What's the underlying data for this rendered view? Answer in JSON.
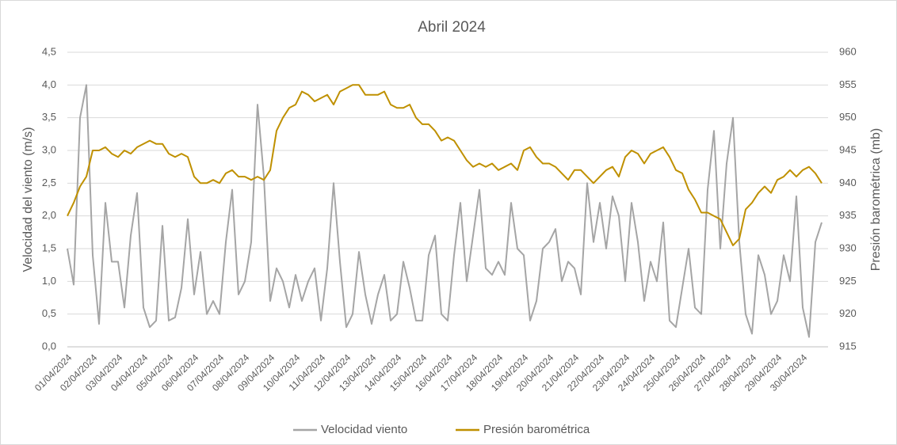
{
  "chart_data": {
    "type": "line",
    "title": "Abril 2024",
    "y_label": "Velocidad del viento (m/s)",
    "y2_label": "Presión barométrica (mb)",
    "categories": [
      "01/04/2024",
      null,
      null,
      null,
      "02/04/2024",
      null,
      null,
      null,
      "03/04/2024",
      null,
      null,
      null,
      "04/04/2024",
      null,
      null,
      null,
      "05/04/2024",
      null,
      null,
      null,
      "06/04/2024",
      null,
      null,
      null,
      "07/04/2024",
      null,
      null,
      null,
      "08/04/2024",
      null,
      null,
      null,
      "09/04/2024",
      null,
      null,
      null,
      "10/04/2024",
      null,
      null,
      null,
      "11/04/2024",
      null,
      null,
      null,
      "12/04/2024",
      null,
      null,
      null,
      "13/04/2024",
      null,
      null,
      null,
      "14/04/2024",
      null,
      null,
      null,
      "15/04/2024",
      null,
      null,
      null,
      "16/04/2024",
      null,
      null,
      null,
      "17/04/2024",
      null,
      null,
      null,
      "18/04/2024",
      null,
      null,
      null,
      "19/04/2024",
      null,
      null,
      null,
      "20/04/2024",
      null,
      null,
      null,
      "21/04/2024",
      null,
      null,
      null,
      "22/04/2024",
      null,
      null,
      null,
      "23/04/2024",
      null,
      null,
      null,
      "24/04/2024",
      null,
      null,
      null,
      "25/04/2024",
      null,
      null,
      null,
      "26/04/2024",
      null,
      null,
      null,
      "27/04/2024",
      null,
      null,
      null,
      "28/04/2024",
      null,
      null,
      null,
      "29/04/2024",
      null,
      null,
      null,
      "30/04/2024",
      null,
      null,
      null
    ],
    "series": [
      {
        "name": "Velocidad viento",
        "color": "#a5a5a5",
        "axis": "y",
        "values": [
          1.5,
          0.95,
          3.5,
          4.0,
          1.4,
          0.35,
          2.2,
          1.3,
          1.3,
          0.6,
          1.7,
          2.35,
          0.6,
          0.3,
          0.4,
          1.85,
          0.4,
          0.45,
          0.9,
          1.95,
          0.8,
          1.45,
          0.5,
          0.7,
          0.5,
          1.6,
          2.4,
          0.8,
          1.0,
          1.6,
          3.7,
          2.6,
          0.7,
          1.2,
          1.0,
          0.6,
          1.1,
          0.7,
          1.0,
          1.2,
          0.4,
          1.2,
          2.5,
          1.3,
          0.3,
          0.5,
          1.45,
          0.8,
          0.35,
          0.8,
          1.1,
          0.4,
          0.5,
          1.3,
          0.9,
          0.4,
          0.4,
          1.4,
          1.7,
          0.5,
          0.4,
          1.4,
          2.2,
          1.0,
          1.7,
          2.4,
          1.2,
          1.1,
          1.3,
          1.1,
          2.2,
          1.5,
          1.4,
          0.4,
          0.7,
          1.5,
          1.6,
          1.8,
          1.0,
          1.3,
          1.2,
          0.8,
          2.5,
          1.6,
          2.2,
          1.5,
          2.3,
          2.0,
          1.0,
          2.2,
          1.6,
          0.7,
          1.3,
          1.0,
          1.9,
          0.4,
          0.3,
          0.9,
          1.5,
          0.6,
          0.5,
          2.4,
          3.3,
          1.5,
          2.8,
          3.5,
          1.6,
          0.5,
          0.2,
          1.4,
          1.1,
          0.5,
          0.7,
          1.4,
          1.0,
          2.3,
          0.6,
          0.15,
          1.6,
          1.9
        ]
      },
      {
        "name": "Presión barométrica",
        "color": "#bf9000",
        "axis": "y2",
        "values": [
          935,
          937,
          939.5,
          941,
          945,
          945,
          945.5,
          944.5,
          944,
          945,
          944.5,
          945.5,
          946,
          946.5,
          946,
          946,
          944.5,
          944,
          944.5,
          944,
          941,
          940,
          940,
          940.5,
          940,
          941.5,
          942,
          941,
          941,
          940.5,
          941,
          940.5,
          942,
          948,
          950,
          951.5,
          952,
          954,
          953.5,
          952.5,
          953,
          953.5,
          952,
          954,
          954.5,
          955,
          955,
          953.5,
          953.5,
          953.5,
          954,
          952,
          951.5,
          951.5,
          952,
          950,
          949,
          949,
          948,
          946.5,
          947,
          946.5,
          945,
          943.5,
          942.5,
          943,
          942.5,
          943,
          942,
          942.5,
          943,
          942,
          945,
          945.5,
          944,
          943,
          943,
          942.5,
          941.5,
          940.5,
          942,
          942,
          941,
          940,
          941,
          942,
          942.5,
          941,
          944,
          945,
          944.5,
          943,
          944.5,
          945,
          945.5,
          944,
          942,
          941.5,
          939,
          937.5,
          935.5,
          935.5,
          935,
          934.5,
          932.5,
          930.5,
          931.5,
          936,
          937,
          938.5,
          939.5,
          938.5,
          940.5,
          941,
          942,
          941,
          942,
          942.5,
          941.5,
          940
        ]
      }
    ],
    "ylim": [
      0,
      4.5
    ],
    "yticks": [
      {
        "value": 0,
        "label": "0,0"
      },
      {
        "value": 0.5,
        "label": "0,5"
      },
      {
        "value": 1,
        "label": "1,0"
      },
      {
        "value": 1.5,
        "label": "1,5"
      },
      {
        "value": 2,
        "label": "2,0"
      },
      {
        "value": 2.5,
        "label": "2,5"
      },
      {
        "value": 3,
        "label": "3,0"
      },
      {
        "value": 3.5,
        "label": "3,5"
      },
      {
        "value": 4,
        "label": "4,0"
      },
      {
        "value": 4.5,
        "label": "4,5"
      }
    ],
    "y2lim": [
      915,
      960
    ],
    "y2ticks": [
      915,
      920,
      925,
      930,
      935,
      940,
      945,
      950,
      955,
      960
    ],
    "grid": true,
    "legend": "bottom"
  }
}
